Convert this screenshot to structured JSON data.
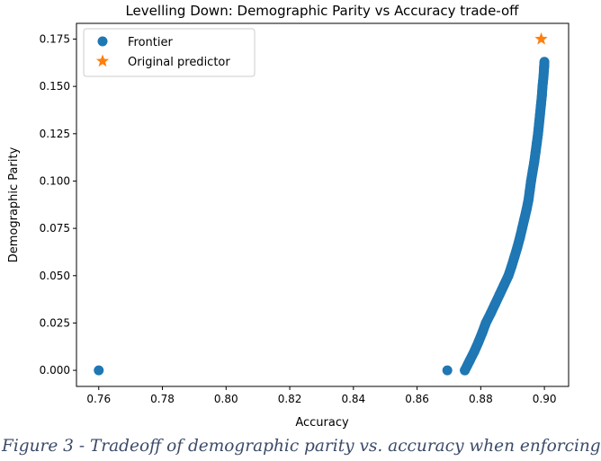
{
  "chart_data": {
    "type": "scatter",
    "title": "Levelling Down: Demographic Parity vs Accuracy trade-off",
    "xlabel": "Accuracy",
    "ylabel": "Demographic Parity",
    "xlim": [
      0.753,
      0.9076
    ],
    "ylim": [
      -0.0085,
      0.1833
    ],
    "xticks": [
      "0.76",
      "0.78",
      "0.80",
      "0.82",
      "0.84",
      "0.86",
      "0.88",
      "0.90"
    ],
    "yticks": [
      "0.000",
      "0.025",
      "0.050",
      "0.075",
      "0.100",
      "0.125",
      "0.150",
      "0.175"
    ],
    "grid": false,
    "legend_position": "top-left",
    "series": [
      {
        "name": "Frontier",
        "marker": "circle",
        "color": "#1f77b4",
        "points": [
          [
            0.76,
            0.0
          ],
          [
            0.8695,
            0.0
          ],
          [
            0.875,
            0.0
          ],
          [
            0.8765,
            0.005
          ],
          [
            0.878,
            0.01
          ],
          [
            0.8793,
            0.015
          ],
          [
            0.8805,
            0.02
          ],
          [
            0.8816,
            0.025
          ],
          [
            0.8831,
            0.03
          ],
          [
            0.8845,
            0.035
          ],
          [
            0.8859,
            0.04
          ],
          [
            0.8873,
            0.045
          ],
          [
            0.8887,
            0.05
          ],
          [
            0.8897,
            0.055
          ],
          [
            0.8906,
            0.06
          ],
          [
            0.8915,
            0.065
          ],
          [
            0.8923,
            0.07
          ],
          [
            0.893,
            0.075
          ],
          [
            0.8937,
            0.08
          ],
          [
            0.8944,
            0.085
          ],
          [
            0.895,
            0.09
          ],
          [
            0.8954,
            0.095
          ],
          [
            0.8958,
            0.1
          ],
          [
            0.8963,
            0.105
          ],
          [
            0.8968,
            0.11
          ],
          [
            0.8972,
            0.115
          ],
          [
            0.8976,
            0.12
          ],
          [
            0.898,
            0.125
          ],
          [
            0.8983,
            0.13
          ],
          [
            0.8986,
            0.135
          ],
          [
            0.8989,
            0.14
          ],
          [
            0.8992,
            0.145
          ],
          [
            0.8994,
            0.15
          ],
          [
            0.8997,
            0.155
          ],
          [
            0.8999,
            0.16
          ],
          [
            0.9,
            0.163
          ]
        ]
      },
      {
        "name": "Original predictor",
        "marker": "star",
        "color": "#ff7f0e",
        "points": [
          [
            0.899,
            0.175
          ]
        ]
      }
    ]
  },
  "caption": "Figure 3 - Tradeoff of demographic parity vs. accuracy when enforcing"
}
